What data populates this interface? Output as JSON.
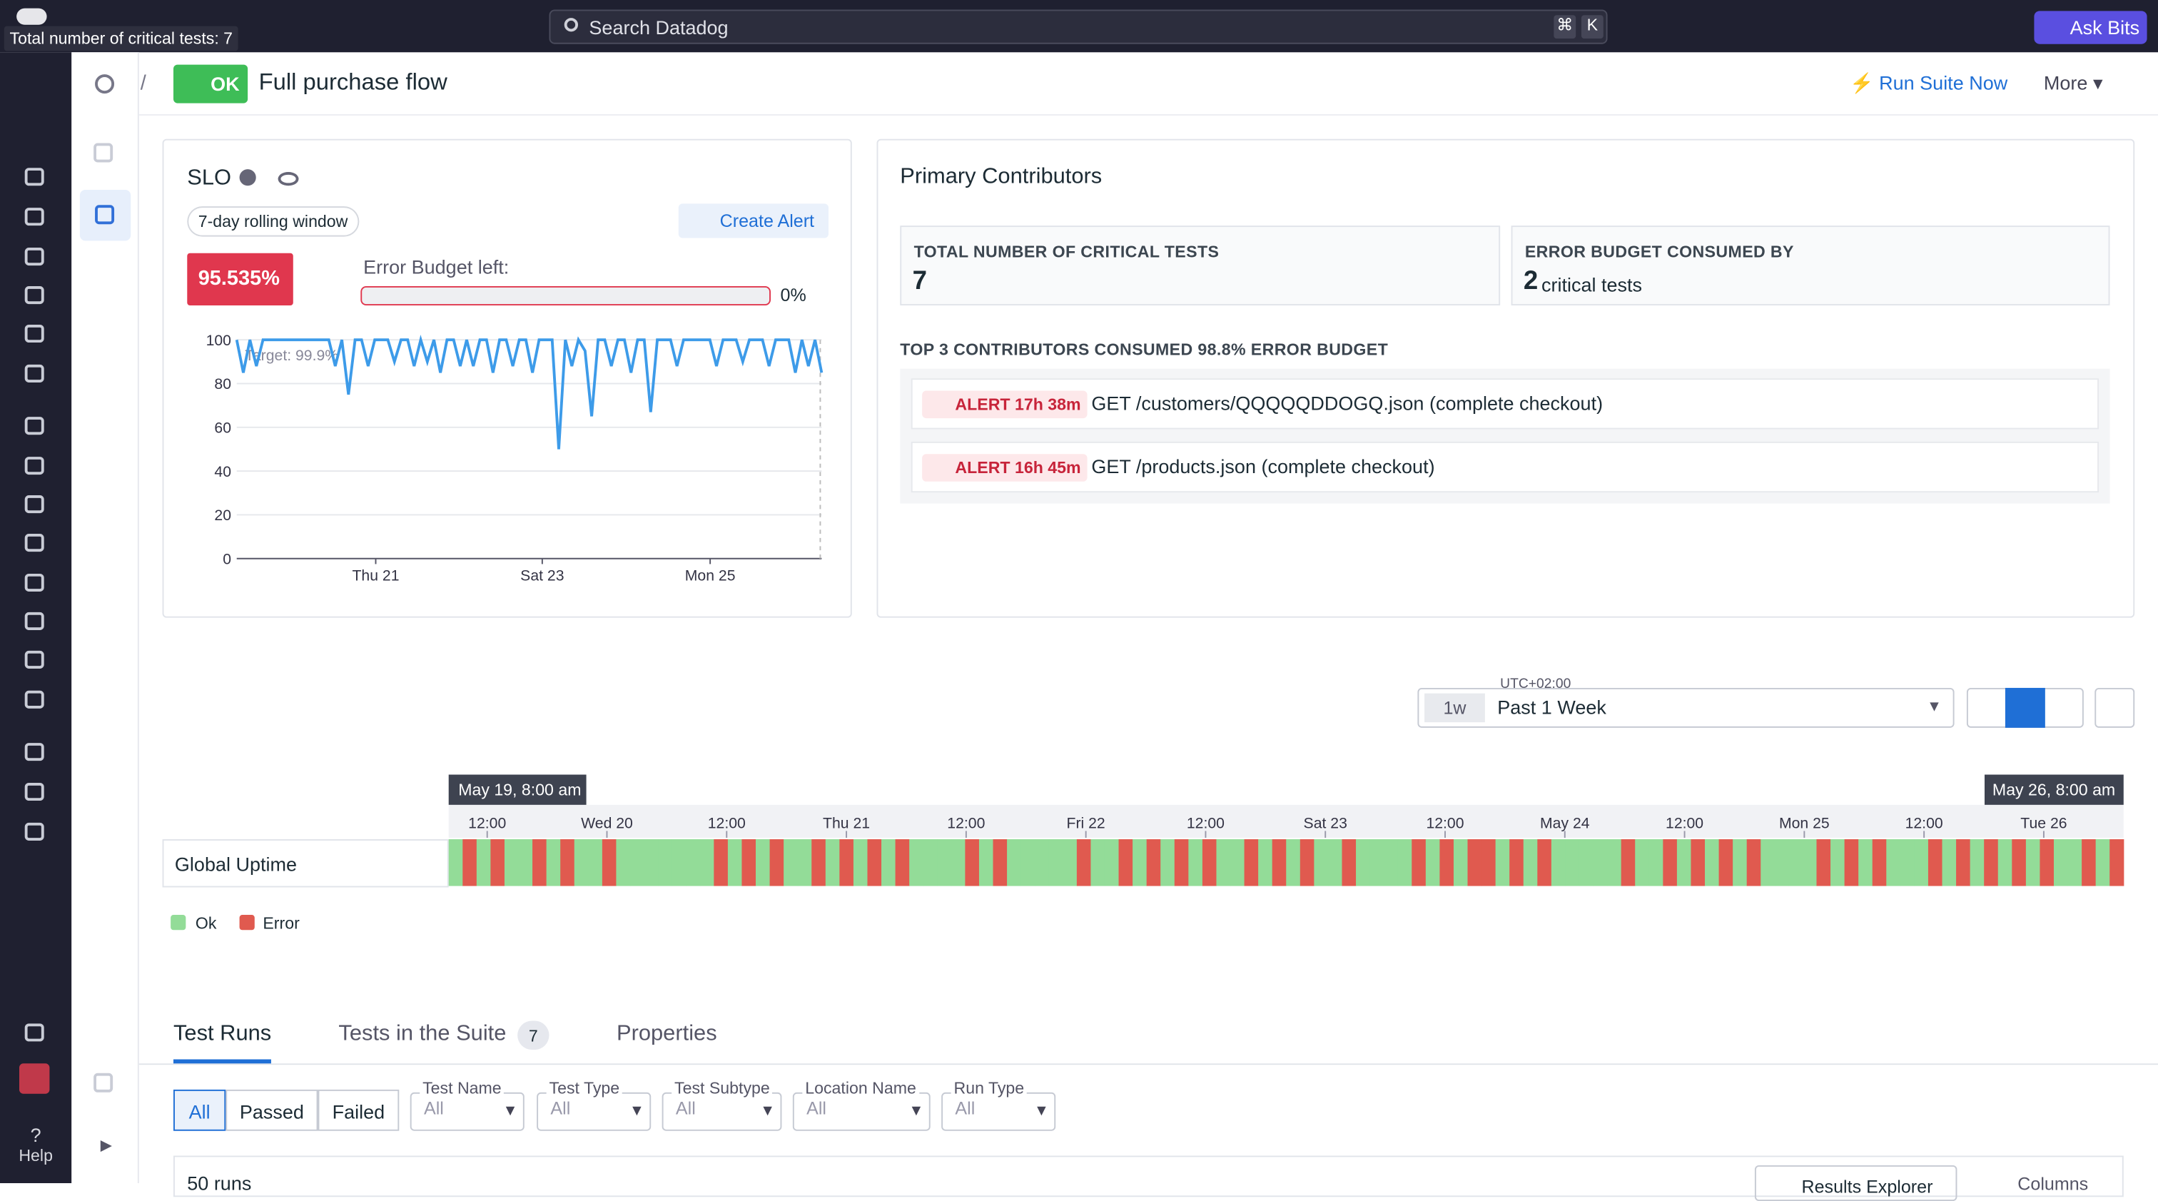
{
  "topbar": {
    "tooltip": "Total number of critical tests: 7",
    "search": "Search Datadog",
    "shortcut": [
      "⌘",
      "K"
    ],
    "ask": "Ask Bits"
  },
  "sidebar": {
    "help": "Help"
  },
  "header": {
    "separator": "/",
    "status": "OK",
    "title": "Full purchase flow",
    "run": "Run Suite Now",
    "more": "More"
  },
  "slo": {
    "title": "SLO",
    "window": "7-day rolling window",
    "create_alert": "Create Alert",
    "value": "95.535%",
    "budget_label": "Error Budget left:",
    "budget_value": "0%",
    "chart": {
      "type": "line",
      "target_label": "Target: 99.9%",
      "ylim": [
        0,
        100
      ],
      "yticks": [
        0,
        20,
        40,
        60,
        80,
        100
      ],
      "xticks": [
        "Thu 21",
        "Sat 23",
        "Mon 25"
      ],
      "color": "#3d9be9",
      "values": [
        100,
        85,
        100,
        88,
        100,
        100,
        100,
        100,
        100,
        100,
        100,
        100,
        100,
        100,
        100,
        88,
        100,
        75,
        100,
        100,
        88,
        100,
        100,
        100,
        90,
        100,
        100,
        88,
        100,
        90,
        100,
        85,
        100,
        100,
        88,
        100,
        88,
        100,
        100,
        85,
        100,
        100,
        88,
        100,
        100,
        85,
        100,
        100,
        100,
        50,
        100,
        88,
        100,
        95,
        65,
        100,
        100,
        88,
        100,
        100,
        85,
        100,
        100,
        67,
        100,
        100,
        100,
        88,
        100,
        100,
        100,
        100,
        100,
        88,
        100,
        100,
        100,
        90,
        100,
        100,
        100,
        88,
        100,
        100,
        100,
        85,
        100,
        88,
        100,
        85
      ]
    }
  },
  "contributors": {
    "title": "Primary Contributors",
    "total_label": "TOTAL NUMBER OF CRITICAL TESTS",
    "total_value": "7",
    "consumed_label": "ERROR BUDGET CONSUMED BY",
    "consumed_count": "2",
    "consumed_suffix": "critical tests",
    "top_label": "TOP 3 CONTRIBUTORS CONSUMED 98.8% ERROR BUDGET",
    "alerts": [
      {
        "badge": "ALERT 17h 38m",
        "name": "GET /customers/QQQQQDDOGQ.json (complete checkout)"
      },
      {
        "badge": "ALERT 16h 45m",
        "name": "GET /products.json (complete checkout)"
      }
    ]
  },
  "time": {
    "tz": "UTC+02:00",
    "short": "1w",
    "range": "Past 1 Week"
  },
  "timeline": {
    "start": "May 19, 8:00 am",
    "end": "May 26, 8:00 am",
    "ticks": [
      "12:00",
      "Wed 20",
      "12:00",
      "Thu 21",
      "12:00",
      "Fri 22",
      "12:00",
      "Sat 23",
      "12:00",
      "May 24",
      "12:00",
      "Mon 25",
      "12:00",
      "Tue 26"
    ],
    "row": "Global Uptime",
    "colors": {
      "ok": "#93dc98",
      "error": "#e05a4f"
    },
    "legend": [
      "Ok",
      "Error"
    ],
    "values": [
      1,
      0,
      1,
      0,
      1,
      1,
      0,
      1,
      0,
      1,
      1,
      0,
      1,
      1,
      1,
      1,
      1,
      1,
      1,
      0,
      1,
      0,
      1,
      0,
      1,
      1,
      0,
      1,
      0,
      1,
      0,
      1,
      0,
      1,
      1,
      1,
      1,
      0,
      1,
      0,
      1,
      1,
      1,
      1,
      1,
      0,
      1,
      1,
      0,
      1,
      0,
      1,
      0,
      1,
      0,
      1,
      1,
      0,
      1,
      0,
      1,
      0,
      1,
      1,
      0,
      1,
      1,
      1,
      1,
      0,
      1,
      0,
      1,
      0,
      0,
      1,
      0,
      1,
      0,
      1,
      1,
      1,
      1,
      1,
      0,
      1,
      1,
      0,
      1,
      0,
      1,
      0,
      1,
      0,
      1,
      1,
      1,
      1,
      0,
      1,
      0,
      1,
      0,
      1,
      1,
      1,
      0,
      1,
      0,
      1,
      0,
      1,
      0,
      1,
      0,
      1,
      1,
      0,
      1,
      0
    ]
  },
  "tabs": {
    "items": [
      "Test Runs",
      "Tests in the Suite",
      "Properties"
    ],
    "suite_count": "7"
  },
  "filters": {
    "status": [
      "All",
      "Passed",
      "Failed"
    ],
    "dropdowns": [
      {
        "label": "Test Name",
        "value": "All"
      },
      {
        "label": "Test Type",
        "value": "All"
      },
      {
        "label": "Test Subtype",
        "value": "All"
      },
      {
        "label": "Location Name",
        "value": "All"
      },
      {
        "label": "Run Type",
        "value": "All"
      }
    ]
  },
  "table": {
    "count": "50 runs",
    "results": "Results Explorer",
    "columns": "Columns"
  }
}
